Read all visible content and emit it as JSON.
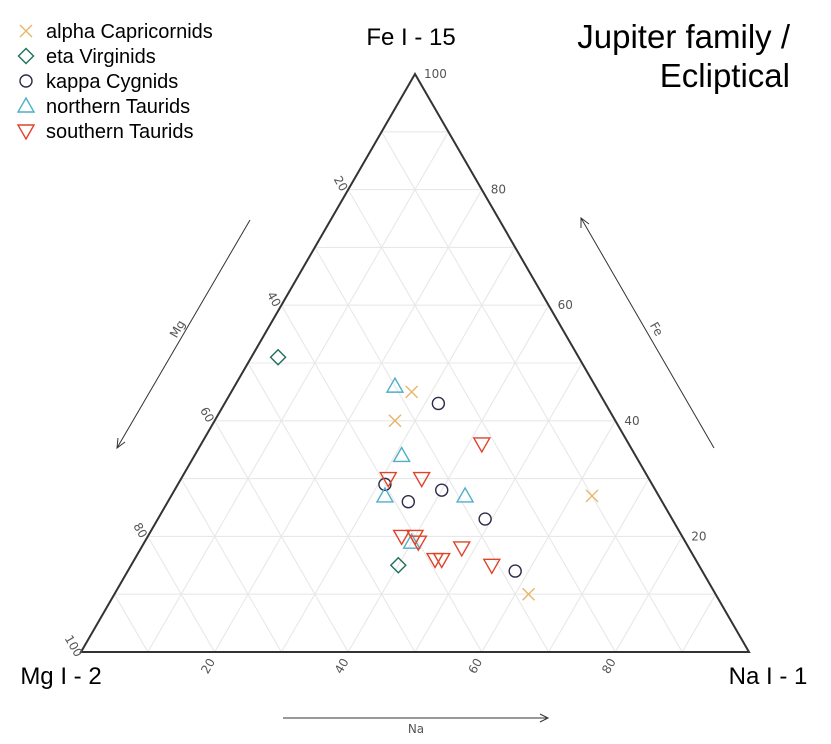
{
  "chart_data": {
    "type": "ternary-scatter",
    "title": [
      "Jupiter family /",
      "Ecliptical"
    ],
    "vertices": {
      "top": "Fe I - 15",
      "left": "Mg I - 2",
      "right": "Na I - 1"
    },
    "axes": {
      "fe": "Fe",
      "mg": "Mg",
      "na": "Na"
    },
    "ticks": [
      20,
      40,
      60,
      80,
      100
    ],
    "grid": true,
    "legend": {
      "position": "top-left"
    },
    "series": [
      {
        "name": "alpha Capricornids",
        "marker": "x",
        "color": "#E8B56A",
        "points": [
          {
            "fe": 45,
            "mg": 28,
            "na": 27
          },
          {
            "fe": 40,
            "mg": 33,
            "na": 27
          },
          {
            "fe": 27,
            "mg": 10,
            "na": 63
          },
          {
            "fe": 10,
            "mg": 28,
            "na": 62
          }
        ]
      },
      {
        "name": "eta Virginids",
        "marker": "diamond",
        "color": "#1E6F5C",
        "points": [
          {
            "fe": 51,
            "mg": 45,
            "na": 4
          },
          {
            "fe": 15,
            "mg": 45,
            "na": 40
          }
        ]
      },
      {
        "name": "kappa Cygnids",
        "marker": "circle",
        "color": "#2E2A4A",
        "points": [
          {
            "fe": 43,
            "mg": 25,
            "na": 32
          },
          {
            "fe": 29,
            "mg": 40,
            "na": 31
          },
          {
            "fe": 28,
            "mg": 32,
            "na": 40
          },
          {
            "fe": 26,
            "mg": 38,
            "na": 36
          },
          {
            "fe": 23,
            "mg": 28,
            "na": 49
          },
          {
            "fe": 14,
            "mg": 28,
            "na": 58
          }
        ]
      },
      {
        "name": "northern Taurids",
        "marker": "triangle-up",
        "color": "#4FAFC8",
        "points": [
          {
            "fe": 46,
            "mg": 30,
            "na": 24
          },
          {
            "fe": 34,
            "mg": 35,
            "na": 31
          },
          {
            "fe": 27,
            "mg": 41,
            "na": 32
          },
          {
            "fe": 27,
            "mg": 29,
            "na": 44
          },
          {
            "fe": 19,
            "mg": 41,
            "na": 40
          }
        ]
      },
      {
        "name": "southern Taurids",
        "marker": "triangle-down",
        "color": "#E0432A",
        "points": [
          {
            "fe": 36,
            "mg": 22,
            "na": 42
          },
          {
            "fe": 30,
            "mg": 39,
            "na": 31
          },
          {
            "fe": 30,
            "mg": 34,
            "na": 36
          },
          {
            "fe": 20,
            "mg": 42,
            "na": 38
          },
          {
            "fe": 20,
            "mg": 40,
            "na": 40
          },
          {
            "fe": 19,
            "mg": 40,
            "na": 41
          },
          {
            "fe": 16,
            "mg": 39,
            "na": 45
          },
          {
            "fe": 16,
            "mg": 38,
            "na": 46
          },
          {
            "fe": 18,
            "mg": 34,
            "na": 48
          },
          {
            "fe": 15,
            "mg": 31,
            "na": 54
          }
        ]
      }
    ]
  }
}
